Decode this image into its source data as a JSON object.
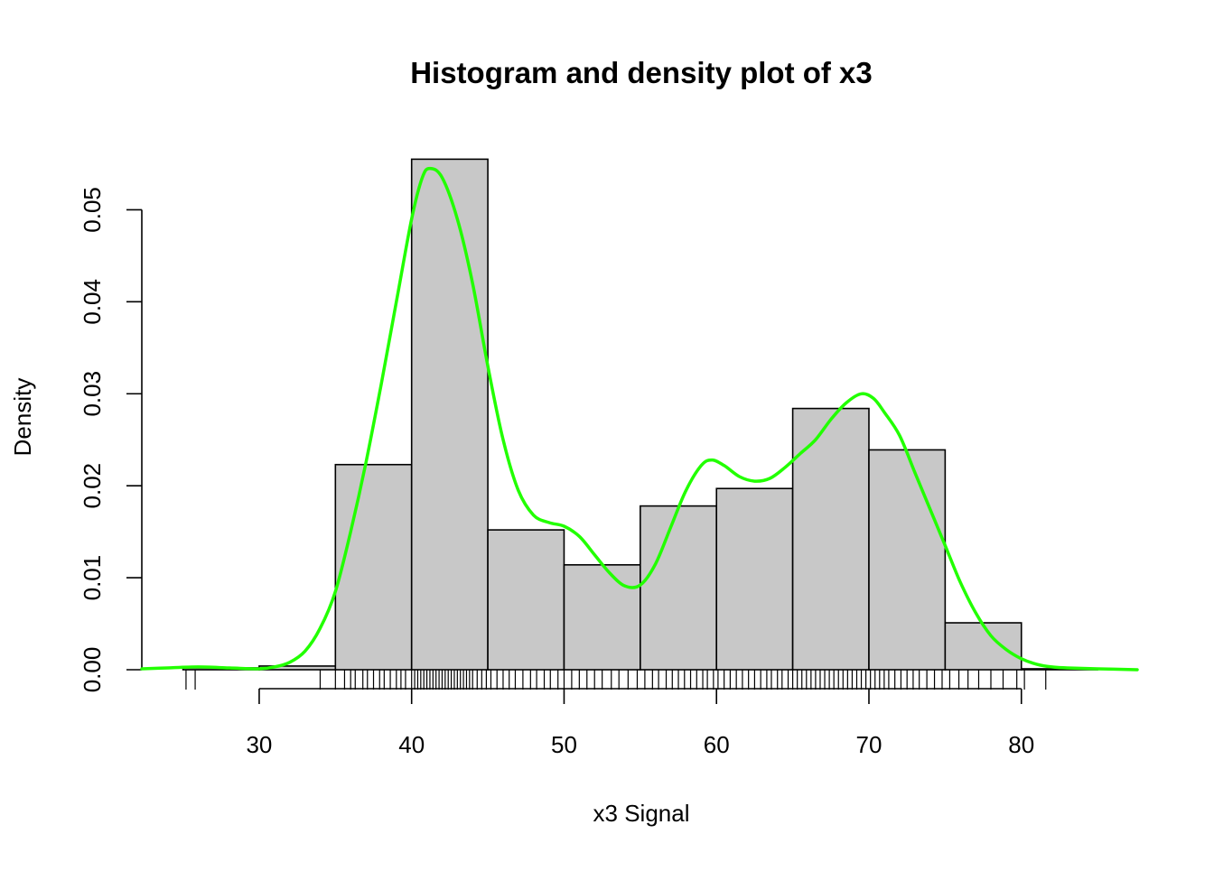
{
  "chart_data": {
    "type": "histogram",
    "title": "Histogram and density plot of x3",
    "xlabel": "x3 Signal",
    "ylabel": "Density",
    "x_ticks": [
      30,
      40,
      50,
      60,
      70,
      80
    ],
    "x_tick_labels": [
      "30",
      "40",
      "50",
      "60",
      "70",
      "80"
    ],
    "y_ticks": [
      0,
      0.01,
      0.02,
      0.03,
      0.04,
      0.05
    ],
    "y_tick_labels": [
      "0.00",
      "0.01",
      "0.02",
      "0.03",
      "0.04",
      "0.05"
    ],
    "xlim": [
      22.3,
      87.6
    ],
    "ylim": [
      0,
      0.0575
    ],
    "bins": [
      {
        "start": 25,
        "end": 30,
        "density": 0.0002
      },
      {
        "start": 30,
        "end": 35,
        "density": 0.0004
      },
      {
        "start": 35,
        "end": 40,
        "density": 0.0223
      },
      {
        "start": 40,
        "end": 45,
        "density": 0.0555
      },
      {
        "start": 45,
        "end": 50,
        "density": 0.0152
      },
      {
        "start": 50,
        "end": 55,
        "density": 0.0114
      },
      {
        "start": 55,
        "end": 60,
        "density": 0.0178
      },
      {
        "start": 60,
        "end": 65,
        "density": 0.0197
      },
      {
        "start": 65,
        "end": 70,
        "density": 0.0284
      },
      {
        "start": 70,
        "end": 75,
        "density": 0.0239
      },
      {
        "start": 75,
        "end": 80,
        "density": 0.0051
      },
      {
        "start": 80,
        "end": 85,
        "density": 0.0001
      }
    ],
    "density_curve": {
      "color": "#22ff00",
      "points": [
        [
          22.3,
          0.0001
        ],
        [
          24,
          0.0002
        ],
        [
          26,
          0.0003
        ],
        [
          28,
          0.0002
        ],
        [
          30,
          0.0001
        ],
        [
          31,
          0.0003
        ],
        [
          32,
          0.0008
        ],
        [
          33,
          0.002
        ],
        [
          34,
          0.0045
        ],
        [
          35,
          0.0085
        ],
        [
          36,
          0.015
        ],
        [
          37,
          0.0225
        ],
        [
          38,
          0.031
        ],
        [
          39,
          0.04
        ],
        [
          40,
          0.049
        ],
        [
          40.7,
          0.0535
        ],
        [
          41.2,
          0.0545
        ],
        [
          42,
          0.0535
        ],
        [
          43,
          0.049
        ],
        [
          44,
          0.042
        ],
        [
          45,
          0.033
        ],
        [
          46,
          0.025
        ],
        [
          47,
          0.0195
        ],
        [
          48,
          0.0168
        ],
        [
          49,
          0.016
        ],
        [
          50,
          0.0156
        ],
        [
          51,
          0.0145
        ],
        [
          52,
          0.0125
        ],
        [
          53,
          0.0105
        ],
        [
          54,
          0.0091
        ],
        [
          55,
          0.0092
        ],
        [
          56,
          0.0115
        ],
        [
          57,
          0.0155
        ],
        [
          58,
          0.0195
        ],
        [
          59,
          0.0222
        ],
        [
          59.7,
          0.0228
        ],
        [
          60.5,
          0.0222
        ],
        [
          61.5,
          0.021
        ],
        [
          62.5,
          0.0205
        ],
        [
          63.5,
          0.0208
        ],
        [
          64.5,
          0.022
        ],
        [
          65.5,
          0.0235
        ],
        [
          66.5,
          0.025
        ],
        [
          67.5,
          0.0272
        ],
        [
          68.5,
          0.029
        ],
        [
          69.5,
          0.03
        ],
        [
          70.3,
          0.0295
        ],
        [
          71,
          0.028
        ],
        [
          72,
          0.0255
        ],
        [
          73,
          0.0215
        ],
        [
          74,
          0.0175
        ],
        [
          75,
          0.0135
        ],
        [
          76,
          0.0095
        ],
        [
          77,
          0.0062
        ],
        [
          78,
          0.0037
        ],
        [
          79,
          0.0022
        ],
        [
          80,
          0.0012
        ],
        [
          81,
          0.0006
        ],
        [
          82,
          0.0003
        ],
        [
          83,
          0.0002
        ],
        [
          85,
          0.0001
        ],
        [
          87.6,
          0.0
        ]
      ]
    },
    "rug_x": [
      25.2,
      25.8,
      34,
      35,
      35.6,
      36,
      36.3,
      36.8,
      37.1,
      37.5,
      37.9,
      38.2,
      38.6,
      39,
      39.3,
      39.6,
      40,
      40.2,
      40.4,
      40.6,
      40.8,
      41,
      41.2,
      41.4,
      41.6,
      41.8,
      42,
      42.2,
      42.4,
      42.6,
      42.8,
      43,
      43.2,
      43.4,
      43.6,
      43.8,
      44,
      44.3,
      44.6,
      44.9,
      45.2,
      45.6,
      46,
      46.4,
      46.8,
      47.3,
      47.8,
      48.2,
      48.7,
      49.1,
      49.6,
      50,
      50.5,
      51,
      51.5,
      52,
      52.5,
      53.1,
      53.6,
      54.2,
      54.8,
      55.3,
      55.8,
      56.2,
      56.7,
      57.1,
      57.5,
      57.9,
      58.3,
      58.7,
      59.1,
      59.4,
      59.8,
      60.1,
      60.5,
      60.9,
      61.3,
      61.7,
      62.1,
      62.5,
      62.9,
      63.3,
      63.6,
      64,
      64.3,
      64.7,
      65,
      65.3,
      65.6,
      65.9,
      66.2,
      66.5,
      66.8,
      67.1,
      67.4,
      67.7,
      68,
      68.3,
      68.6,
      68.9,
      69.2,
      69.5,
      69.8,
      70.1,
      70.4,
      70.7,
      71,
      71.3,
      71.7,
      72.1,
      72.5,
      72.9,
      73.3,
      73.8,
      74.3,
      74.8,
      75.3,
      75.9,
      76.5,
      77.2,
      78,
      78.8,
      79.7,
      80.2,
      81.6
    ]
  }
}
